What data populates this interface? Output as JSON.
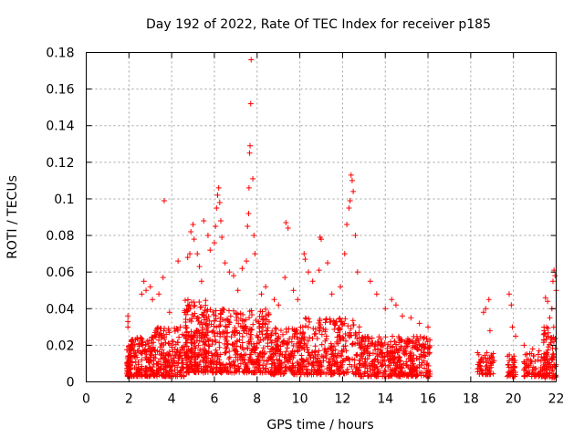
{
  "chart_data": {
    "type": "scatter",
    "title": "Day 192 of 2022, Rate Of TEC Index for receiver p185",
    "xlabel": "GPS time / hours",
    "ylabel": "ROTI / TECUs",
    "xlim": [
      0,
      22
    ],
    "ylim": [
      0,
      0.18
    ],
    "xticks": [
      0,
      2,
      4,
      6,
      8,
      10,
      12,
      14,
      16,
      18,
      20,
      22
    ],
    "yticks": [
      0,
      0.02,
      0.04,
      0.06,
      0.08,
      0.1,
      0.12,
      0.14,
      0.16,
      0.18
    ],
    "ytick_labels": [
      "0",
      "0.02",
      "0.04",
      "0.06",
      "0.08",
      "0.1",
      "0.12",
      "0.14",
      "0.16",
      "0.18"
    ],
    "grid": true,
    "legend": "none",
    "marker": "plus",
    "color": "#ff0000",
    "clusters": [
      {
        "x_range": [
          1.9,
          2.1
        ],
        "y_range": [
          0.003,
          0.02
        ],
        "count": 60
      },
      {
        "x_range": [
          2.1,
          3.2
        ],
        "y_range": [
          0.003,
          0.025
        ],
        "count": 160
      },
      {
        "x_range": [
          3.2,
          4.6
        ],
        "y_range": [
          0.003,
          0.03
        ],
        "count": 190
      },
      {
        "x_range": [
          4.6,
          5.6
        ],
        "y_range": [
          0.005,
          0.045
        ],
        "count": 220
      },
      {
        "x_range": [
          5.6,
          8.6
        ],
        "y_range": [
          0.005,
          0.04
        ],
        "count": 420
      },
      {
        "x_range": [
          8.6,
          10.2
        ],
        "y_range": [
          0.004,
          0.03
        ],
        "count": 230
      },
      {
        "x_range": [
          10.2,
          12.8
        ],
        "y_range": [
          0.004,
          0.035
        ],
        "count": 300
      },
      {
        "x_range": [
          12.8,
          14.6
        ],
        "y_range": [
          0.003,
          0.025
        ],
        "count": 220
      },
      {
        "x_range": [
          14.6,
          16.1
        ],
        "y_range": [
          0.003,
          0.025
        ],
        "count": 200
      },
      {
        "x_range": [
          18.3,
          19.1
        ],
        "y_range": [
          0.004,
          0.016
        ],
        "count": 60
      },
      {
        "x_range": [
          19.7,
          20.1
        ],
        "y_range": [
          0.003,
          0.016
        ],
        "count": 40
      },
      {
        "x_range": [
          20.4,
          21.6
        ],
        "y_range": [
          0.003,
          0.016
        ],
        "count": 80
      },
      {
        "x_range": [
          21.4,
          22.0
        ],
        "y_range": [
          0.002,
          0.03
        ],
        "count": 90
      }
    ],
    "points": [
      [
        1.95,
        0.036
      ],
      [
        1.95,
        0.033
      ],
      [
        1.95,
        0.03
      ],
      [
        2.6,
        0.048
      ],
      [
        2.7,
        0.055
      ],
      [
        2.8,
        0.05
      ],
      [
        3.0,
        0.052
      ],
      [
        3.1,
        0.045
      ],
      [
        3.4,
        0.048
      ],
      [
        3.6,
        0.057
      ],
      [
        3.65,
        0.099
      ],
      [
        3.9,
        0.038
      ],
      [
        4.3,
        0.066
      ],
      [
        4.75,
        0.068
      ],
      [
        4.85,
        0.07
      ],
      [
        4.9,
        0.082
      ],
      [
        5.0,
        0.086
      ],
      [
        5.05,
        0.078
      ],
      [
        5.2,
        0.07
      ],
      [
        5.3,
        0.063
      ],
      [
        5.4,
        0.055
      ],
      [
        5.5,
        0.088
      ],
      [
        5.7,
        0.08
      ],
      [
        5.8,
        0.072
      ],
      [
        6.0,
        0.076
      ],
      [
        6.05,
        0.085
      ],
      [
        6.1,
        0.095
      ],
      [
        6.15,
        0.102
      ],
      [
        6.2,
        0.106
      ],
      [
        6.25,
        0.098
      ],
      [
        6.3,
        0.088
      ],
      [
        6.35,
        0.079
      ],
      [
        6.5,
        0.065
      ],
      [
        6.7,
        0.06
      ],
      [
        6.9,
        0.058
      ],
      [
        7.1,
        0.05
      ],
      [
        7.3,
        0.062
      ],
      [
        7.5,
        0.066
      ],
      [
        7.55,
        0.085
      ],
      [
        7.6,
        0.092
      ],
      [
        7.62,
        0.106
      ],
      [
        7.65,
        0.125
      ],
      [
        7.67,
        0.129
      ],
      [
        7.7,
        0.152
      ],
      [
        7.72,
        0.176
      ],
      [
        7.8,
        0.111
      ],
      [
        7.85,
        0.08
      ],
      [
        7.9,
        0.07
      ],
      [
        8.2,
        0.048
      ],
      [
        8.4,
        0.052
      ],
      [
        8.8,
        0.045
      ],
      [
        9.0,
        0.042
      ],
      [
        9.3,
        0.057
      ],
      [
        9.35,
        0.087
      ],
      [
        9.45,
        0.084
      ],
      [
        9.7,
        0.05
      ],
      [
        9.9,
        0.045
      ],
      [
        10.2,
        0.07
      ],
      [
        10.25,
        0.067
      ],
      [
        10.4,
        0.06
      ],
      [
        10.6,
        0.055
      ],
      [
        10.9,
        0.061
      ],
      [
        10.95,
        0.079
      ],
      [
        11.0,
        0.078
      ],
      [
        11.3,
        0.065
      ],
      [
        11.5,
        0.048
      ],
      [
        11.9,
        0.052
      ],
      [
        12.1,
        0.07
      ],
      [
        12.2,
        0.086
      ],
      [
        12.3,
        0.095
      ],
      [
        12.35,
        0.099
      ],
      [
        12.4,
        0.113
      ],
      [
        12.45,
        0.11
      ],
      [
        12.5,
        0.104
      ],
      [
        12.6,
        0.08
      ],
      [
        12.7,
        0.06
      ],
      [
        13.3,
        0.055
      ],
      [
        13.6,
        0.048
      ],
      [
        14.0,
        0.04
      ],
      [
        14.3,
        0.045
      ],
      [
        14.5,
        0.042
      ],
      [
        14.8,
        0.036
      ],
      [
        15.2,
        0.035
      ],
      [
        15.6,
        0.032
      ],
      [
        16.0,
        0.03
      ],
      [
        18.6,
        0.038
      ],
      [
        18.7,
        0.04
      ],
      [
        18.85,
        0.045
      ],
      [
        18.9,
        0.028
      ],
      [
        19.8,
        0.048
      ],
      [
        19.9,
        0.042
      ],
      [
        19.95,
        0.03
      ],
      [
        20.1,
        0.025
      ],
      [
        20.5,
        0.02
      ],
      [
        20.9,
        0.018
      ],
      [
        21.2,
        0.017
      ],
      [
        21.5,
        0.046
      ],
      [
        21.6,
        0.044
      ],
      [
        21.7,
        0.035
      ],
      [
        21.8,
        0.04
      ],
      [
        21.85,
        0.055
      ],
      [
        21.9,
        0.061
      ],
      [
        21.95,
        0.058
      ],
      [
        22.0,
        0.05
      ]
    ]
  }
}
